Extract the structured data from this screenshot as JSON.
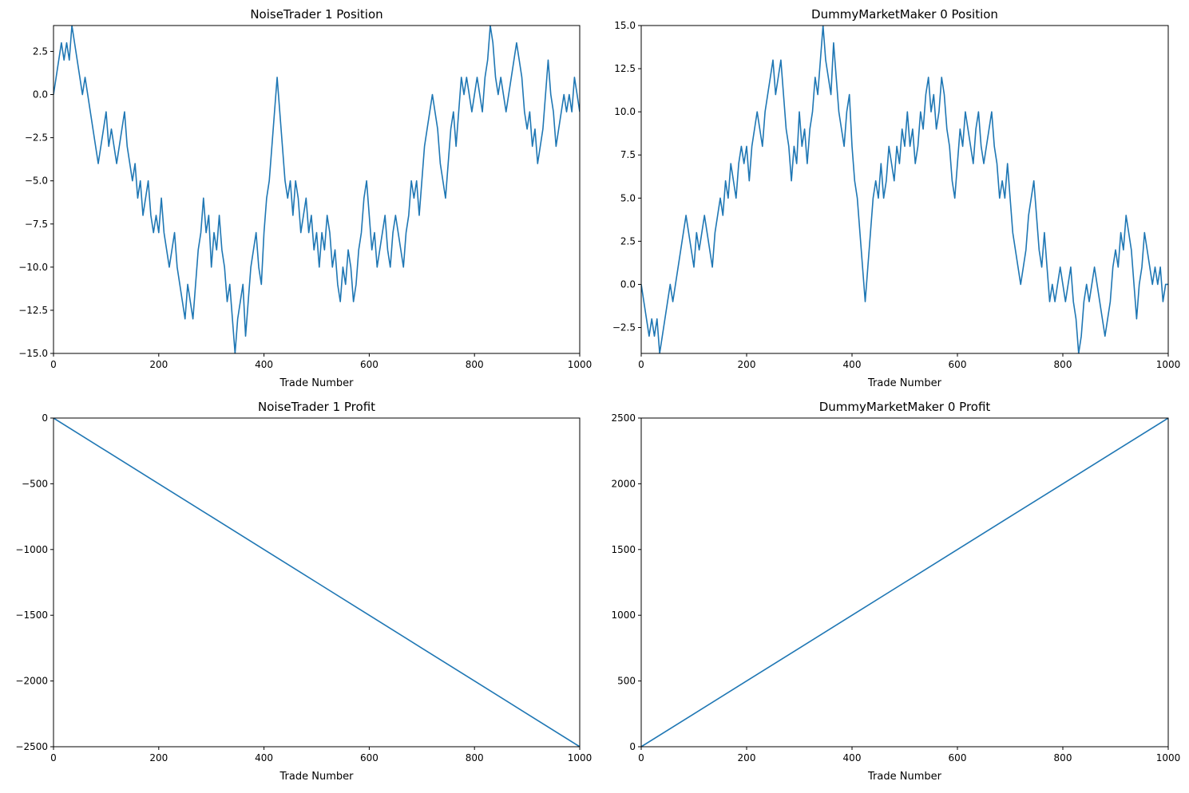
{
  "chart_data": [
    {
      "type": "line",
      "title": "NoiseTrader 1 Position",
      "xlabel": "Trade Number",
      "ylabel": "",
      "xlim": [
        0,
        1000
      ],
      "ylim": [
        -15,
        4
      ],
      "xticks": [
        0,
        200,
        400,
        600,
        800,
        1000
      ],
      "yticks": [
        -15.0,
        -12.5,
        -10.0,
        -7.5,
        -5.0,
        -2.5,
        0.0,
        2.5
      ],
      "ytick_decimals": 1,
      "grid": false,
      "color": "#1f77b4",
      "series": [
        {
          "x": [
            0,
            5,
            10,
            15,
            20,
            25,
            30,
            35,
            40,
            45,
            50,
            55,
            60,
            65,
            70,
            75,
            80,
            85,
            90,
            95,
            100,
            105,
            110,
            115,
            120,
            125,
            130,
            135,
            140,
            145,
            150,
            155,
            160,
            165,
            170,
            175,
            180,
            185,
            190,
            195,
            200,
            205,
            210,
            215,
            220,
            225,
            230,
            235,
            240,
            245,
            250,
            255,
            260,
            265,
            270,
            275,
            280,
            285,
            290,
            295,
            300,
            305,
            310,
            315,
            320,
            325,
            330,
            335,
            340,
            345,
            350,
            355,
            360,
            365,
            370,
            375,
            380,
            385,
            390,
            395,
            400,
            405,
            410,
            415,
            420,
            425,
            430,
            435,
            440,
            445,
            450,
            455,
            460,
            465,
            470,
            475,
            480,
            485,
            490,
            495,
            500,
            505,
            510,
            515,
            520,
            525,
            530,
            535,
            540,
            545,
            550,
            555,
            560,
            565,
            570,
            575,
            580,
            585,
            590,
            595,
            600,
            605,
            610,
            615,
            620,
            625,
            630,
            635,
            640,
            645,
            650,
            655,
            660,
            665,
            670,
            675,
            680,
            685,
            690,
            695,
            700,
            705,
            710,
            715,
            720,
            725,
            730,
            735,
            740,
            745,
            750,
            755,
            760,
            765,
            770,
            775,
            780,
            785,
            790,
            795,
            800,
            805,
            810,
            815,
            820,
            825,
            830,
            835,
            840,
            845,
            850,
            855,
            860,
            865,
            870,
            875,
            880,
            885,
            890,
            895,
            900,
            905,
            910,
            915,
            920,
            925,
            930,
            935,
            940,
            945,
            950,
            955,
            960,
            965,
            970,
            975,
            980,
            985,
            990,
            995,
            1000
          ],
          "values": [
            0,
            1,
            2,
            3,
            2,
            3,
            2,
            4,
            3,
            2,
            1,
            0,
            1,
            0,
            -1,
            -2,
            -3,
            -4,
            -3,
            -2,
            -1,
            -3,
            -2,
            -3,
            -4,
            -3,
            -2,
            -1,
            -3,
            -4,
            -5,
            -4,
            -6,
            -5,
            -7,
            -6,
            -5,
            -7,
            -8,
            -7,
            -8,
            -6,
            -8,
            -9,
            -10,
            -9,
            -8,
            -10,
            -11,
            -12,
            -13,
            -11,
            -12,
            -13,
            -11,
            -9,
            -8,
            -6,
            -8,
            -7,
            -10,
            -8,
            -9,
            -7,
            -9,
            -10,
            -12,
            -11,
            -13,
            -15,
            -13,
            -12,
            -11,
            -14,
            -12,
            -10,
            -9,
            -8,
            -10,
            -11,
            -8,
            -6,
            -5,
            -3,
            -1,
            1,
            -1,
            -3,
            -5,
            -6,
            -5,
            -7,
            -5,
            -6,
            -8,
            -7,
            -6,
            -8,
            -7,
            -9,
            -8,
            -10,
            -8,
            -9,
            -7,
            -8,
            -10,
            -9,
            -11,
            -12,
            -10,
            -11,
            -9,
            -10,
            -12,
            -11,
            -9,
            -8,
            -6,
            -5,
            -7,
            -9,
            -8,
            -10,
            -9,
            -8,
            -7,
            -9,
            -10,
            -8,
            -7,
            -8,
            -9,
            -10,
            -8,
            -7,
            -5,
            -6,
            -5,
            -7,
            -5,
            -3,
            -2,
            -1,
            0,
            -1,
            -2,
            -4,
            -5,
            -6,
            -4,
            -2,
            -1,
            -3,
            -1,
            1,
            0,
            1,
            0,
            -1,
            0,
            1,
            0,
            -1,
            1,
            2,
            4,
            3,
            1,
            0,
            1,
            0,
            -1,
            0,
            1,
            2,
            3,
            2,
            1,
            -1,
            -2,
            -1,
            -3,
            -2,
            -4,
            -3,
            -2,
            0,
            2,
            0,
            -1,
            -3,
            -2,
            -1,
            0,
            -1,
            0,
            -1,
            1,
            0,
            -1
          ]
        }
      ]
    },
    {
      "type": "line",
      "title": "DummyMarketMaker 0 Position",
      "xlabel": "Trade Number",
      "ylabel": "",
      "xlim": [
        0,
        1000
      ],
      "ylim": [
        -4,
        15
      ],
      "xticks": [
        0,
        200,
        400,
        600,
        800,
        1000
      ],
      "yticks": [
        -2.5,
        0.0,
        2.5,
        5.0,
        7.5,
        10.0,
        12.5,
        15.0
      ],
      "ytick_decimals": 1,
      "grid": false,
      "color": "#1f77b4",
      "series": [
        {
          "x": [
            0,
            5,
            10,
            15,
            20,
            25,
            30,
            35,
            40,
            45,
            50,
            55,
            60,
            65,
            70,
            75,
            80,
            85,
            90,
            95,
            100,
            105,
            110,
            115,
            120,
            125,
            130,
            135,
            140,
            145,
            150,
            155,
            160,
            165,
            170,
            175,
            180,
            185,
            190,
            195,
            200,
            205,
            210,
            215,
            220,
            225,
            230,
            235,
            240,
            245,
            250,
            255,
            260,
            265,
            270,
            275,
            280,
            285,
            290,
            295,
            300,
            305,
            310,
            315,
            320,
            325,
            330,
            335,
            340,
            345,
            350,
            355,
            360,
            365,
            370,
            375,
            380,
            385,
            390,
            395,
            400,
            405,
            410,
            415,
            420,
            425,
            430,
            435,
            440,
            445,
            450,
            455,
            460,
            465,
            470,
            475,
            480,
            485,
            490,
            495,
            500,
            505,
            510,
            515,
            520,
            525,
            530,
            535,
            540,
            545,
            550,
            555,
            560,
            565,
            570,
            575,
            580,
            585,
            590,
            595,
            600,
            605,
            610,
            615,
            620,
            625,
            630,
            635,
            640,
            645,
            650,
            655,
            660,
            665,
            670,
            675,
            680,
            685,
            690,
            695,
            700,
            705,
            710,
            715,
            720,
            725,
            730,
            735,
            740,
            745,
            750,
            755,
            760,
            765,
            770,
            775,
            780,
            785,
            790,
            795,
            800,
            805,
            810,
            815,
            820,
            825,
            830,
            835,
            840,
            845,
            850,
            855,
            860,
            865,
            870,
            875,
            880,
            885,
            890,
            895,
            900,
            905,
            910,
            915,
            920,
            925,
            930,
            935,
            940,
            945,
            950,
            955,
            960,
            965,
            970,
            975,
            980,
            985,
            990,
            995,
            1000
          ],
          "values": [
            0,
            -1,
            -2,
            -3,
            -2,
            -3,
            -2,
            -4,
            -3,
            -2,
            -1,
            0,
            -1,
            0,
            1,
            2,
            3,
            4,
            3,
            2,
            1,
            3,
            2,
            3,
            4,
            3,
            2,
            1,
            3,
            4,
            5,
            4,
            6,
            5,
            7,
            6,
            5,
            7,
            8,
            7,
            8,
            6,
            8,
            9,
            10,
            9,
            8,
            10,
            11,
            12,
            13,
            11,
            12,
            13,
            11,
            9,
            8,
            6,
            8,
            7,
            10,
            8,
            9,
            7,
            9,
            10,
            12,
            11,
            13,
            15,
            13,
            12,
            11,
            14,
            12,
            10,
            9,
            8,
            10,
            11,
            8,
            6,
            5,
            3,
            1,
            -1,
            1,
            3,
            5,
            6,
            5,
            7,
            5,
            6,
            8,
            7,
            6,
            8,
            7,
            9,
            8,
            10,
            8,
            9,
            7,
            8,
            10,
            9,
            11,
            12,
            10,
            11,
            9,
            10,
            12,
            11,
            9,
            8,
            6,
            5,
            7,
            9,
            8,
            10,
            9,
            8,
            7,
            9,
            10,
            8,
            7,
            8,
            9,
            10,
            8,
            7,
            5,
            6,
            5,
            7,
            5,
            3,
            2,
            1,
            0,
            1,
            2,
            4,
            5,
            6,
            4,
            2,
            1,
            3,
            1,
            -1,
            0,
            -1,
            0,
            1,
            0,
            -1,
            0,
            1,
            -1,
            -2,
            -4,
            -3,
            -1,
            0,
            -1,
            0,
            1,
            0,
            -1,
            -2,
            -3,
            -2,
            -1,
            1,
            2,
            1,
            3,
            2,
            4,
            3,
            2,
            0,
            -2,
            0,
            1,
            3,
            2,
            1,
            0,
            1,
            0,
            1,
            -1,
            0,
            0
          ]
        }
      ]
    },
    {
      "type": "line",
      "title": "NoiseTrader 1 Profit",
      "xlabel": "Trade Number",
      "ylabel": "",
      "xlim": [
        0,
        1000
      ],
      "ylim": [
        -2500,
        0
      ],
      "xticks": [
        0,
        200,
        400,
        600,
        800,
        1000
      ],
      "yticks": [
        -2500,
        -2000,
        -1500,
        -1000,
        -500,
        0
      ],
      "ytick_decimals": 0,
      "grid": false,
      "color": "#1f77b4",
      "series": [
        {
          "x": [
            0,
            100,
            200,
            300,
            400,
            500,
            600,
            700,
            800,
            900,
            1000
          ],
          "values": [
            0,
            -250,
            -500,
            -750,
            -1000,
            -1250,
            -1500,
            -1750,
            -2000,
            -2250,
            -2500
          ]
        }
      ]
    },
    {
      "type": "line",
      "title": "DummyMarketMaker 0 Profit",
      "xlabel": "Trade Number",
      "ylabel": "",
      "xlim": [
        0,
        1000
      ],
      "ylim": [
        0,
        2500
      ],
      "xticks": [
        0,
        200,
        400,
        600,
        800,
        1000
      ],
      "yticks": [
        0,
        500,
        1000,
        1500,
        2000,
        2500
      ],
      "ytick_decimals": 0,
      "grid": false,
      "color": "#1f77b4",
      "series": [
        {
          "x": [
            0,
            100,
            200,
            300,
            400,
            500,
            600,
            700,
            800,
            900,
            1000
          ],
          "values": [
            0,
            250,
            500,
            750,
            1000,
            1250,
            1500,
            1750,
            2000,
            2250,
            2500
          ]
        }
      ]
    }
  ]
}
